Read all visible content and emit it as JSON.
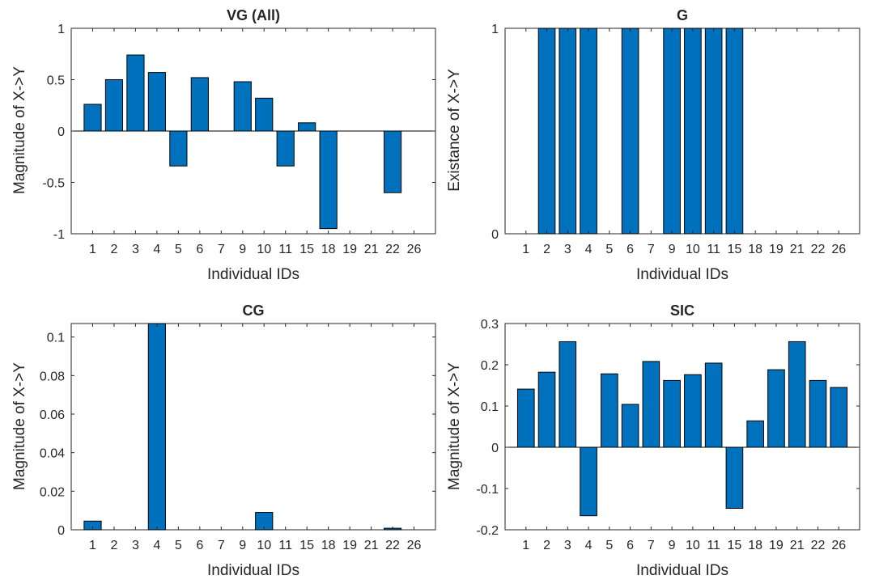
{
  "chart_data": [
    {
      "type": "bar",
      "title": "VG (All)",
      "xlabel": "Individual IDs",
      "ylabel": "Magnitude of X->Y",
      "categories": [
        "1",
        "2",
        "3",
        "4",
        "5",
        "6",
        "7",
        "9",
        "10",
        "11",
        "15",
        "18",
        "19",
        "21",
        "22",
        "26"
      ],
      "values": [
        0.26,
        0.5,
        0.74,
        0.57,
        -0.34,
        0.52,
        0,
        0.48,
        0.32,
        -0.34,
        0.08,
        -0.95,
        0,
        0,
        -0.6,
        0
      ],
      "ylim": [
        -1,
        1
      ],
      "yticks": [
        -1,
        -0.5,
        0,
        0.5,
        1
      ],
      "ytick_labels": [
        "-1",
        "-0.5",
        "0",
        "0.5",
        "1"
      ],
      "bar_color": "#0072BD"
    },
    {
      "type": "bar",
      "title": "G",
      "xlabel": "Individual IDs",
      "ylabel": "Existance of X->Y",
      "categories": [
        "1",
        "2",
        "3",
        "4",
        "5",
        "6",
        "7",
        "9",
        "10",
        "11",
        "15",
        "18",
        "19",
        "21",
        "22",
        "26"
      ],
      "values": [
        0,
        1,
        1,
        1,
        0,
        1,
        0,
        1,
        1,
        1,
        1,
        0,
        0,
        0,
        0,
        0
      ],
      "ylim": [
        0,
        1
      ],
      "yticks": [
        0,
        1
      ],
      "ytick_labels": [
        "0",
        "1"
      ],
      "bar_color": "#0072BD"
    },
    {
      "type": "bar",
      "title": "CG",
      "xlabel": "Individual IDs",
      "ylabel": "Magnitude of X->Y",
      "categories": [
        "1",
        "2",
        "3",
        "4",
        "5",
        "6",
        "7",
        "9",
        "10",
        "11",
        "15",
        "18",
        "19",
        "21",
        "22",
        "26"
      ],
      "values": [
        0.0045,
        0,
        0,
        0.107,
        0,
        0,
        0,
        0,
        0.009,
        0,
        0,
        0,
        0,
        0,
        0.0008,
        0
      ],
      "ylim": [
        0,
        0.107
      ],
      "yticks": [
        0,
        0.02,
        0.04,
        0.06,
        0.08,
        0.1
      ],
      "ytick_labels": [
        "0",
        "0.02",
        "0.04",
        "0.06",
        "0.08",
        "0.1"
      ],
      "bar_color": "#0072BD"
    },
    {
      "type": "bar",
      "title": "SIC",
      "xlabel": "Individual IDs",
      "ylabel": "Magnitude of X->Y",
      "categories": [
        "1",
        "2",
        "3",
        "4",
        "5",
        "6",
        "7",
        "9",
        "10",
        "11",
        "15",
        "18",
        "19",
        "21",
        "22",
        "26"
      ],
      "values": [
        0.141,
        0.182,
        0.256,
        -0.166,
        0.178,
        0.104,
        0.208,
        0.162,
        0.176,
        0.204,
        -0.148,
        0.064,
        0.188,
        0.256,
        0.162,
        0.145
      ],
      "ylim": [
        -0.2,
        0.3
      ],
      "yticks": [
        -0.2,
        -0.1,
        0,
        0.1,
        0.2,
        0.3
      ],
      "ytick_labels": [
        "-0.2",
        "-0.1",
        "0",
        "0.1",
        "0.2",
        "0.3"
      ],
      "bar_color": "#0072BD"
    }
  ]
}
